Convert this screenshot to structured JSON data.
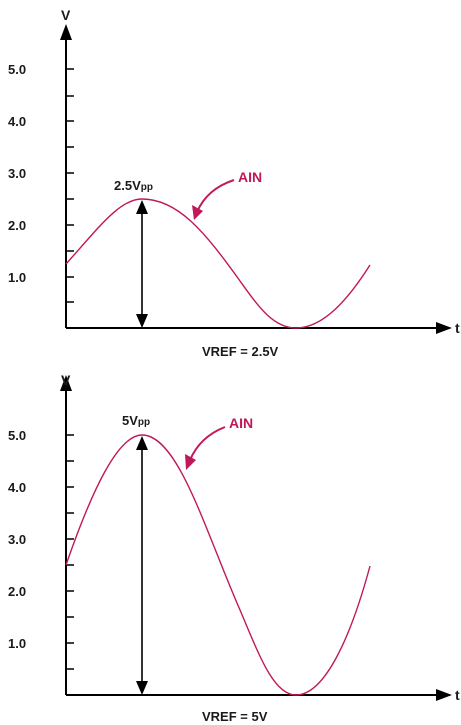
{
  "colors": {
    "signal": "#c0185a",
    "axis": "#000000",
    "text": "#1a1a1a"
  },
  "chart_data": [
    {
      "type": "line",
      "title": "",
      "ylabel": "V",
      "xlabel": "t",
      "y_ticks": [
        "5.0",
        "4.0",
        "3.0",
        "2.0",
        "1.0"
      ],
      "ylim": [
        0,
        5.0
      ],
      "amplitude_label": "2.5Vpp",
      "amplitude_main": "2.5V",
      "amplitude_sub": "pp",
      "signal_label": "AIN",
      "reference_label": "VREF = 2.5V",
      "signal": {
        "offset": 1.25,
        "amplitude": 1.25,
        "peak": 2.5,
        "trough": 0.0
      }
    },
    {
      "type": "line",
      "title": "",
      "ylabel": "V",
      "xlabel": "t",
      "y_ticks": [
        "5.0",
        "4.0",
        "3.0",
        "2.0",
        "1.0"
      ],
      "ylim": [
        0,
        5.0
      ],
      "amplitude_label": "5Vpp",
      "amplitude_main": "5V",
      "amplitude_sub": "pp",
      "signal_label": "AIN",
      "reference_label": "VREF = 5V",
      "signal": {
        "offset": 2.5,
        "amplitude": 2.5,
        "peak": 5.0,
        "trough": 0.0
      }
    }
  ]
}
